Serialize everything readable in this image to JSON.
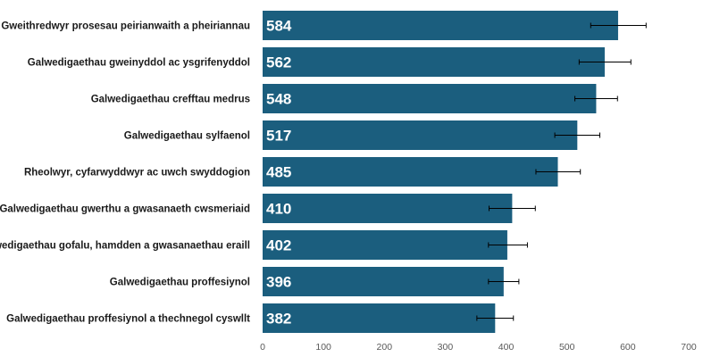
{
  "chart_data": {
    "type": "bar",
    "orientation": "horizontal",
    "categories": [
      "Gweithredwyr prosesau peirianwaith a pheiriannau",
      "Galwedigaethau gweinyddol ac ysgrifenyddol",
      "Galwedigaethau crefftau medrus",
      "Galwedigaethau sylfaenol",
      "Rheolwyr, cyfarwyddwyr ac uwch swyddogion",
      "Galwedigaethau gwerthu a gwasanaeth cwsmeriaid",
      "Galwedigaethau gofalu, hamdden a gwasanaethau eraill",
      "Galwedigaethau proffesiynol",
      "Galwedigaethau proffesiynol a thechnegol cyswllt"
    ],
    "values": [
      584,
      562,
      548,
      517,
      485,
      410,
      402,
      396,
      382
    ],
    "value_labels": [
      "584",
      "562",
      "548",
      "517",
      "485",
      "410",
      "402",
      "396",
      "382"
    ],
    "error_low": [
      539,
      520,
      513,
      480,
      449,
      372,
      371,
      371,
      352
    ],
    "error_high": [
      630,
      605,
      583,
      554,
      522,
      448,
      435,
      421,
      412
    ],
    "xlim": [
      0,
      700
    ],
    "x_ticks": [
      0,
      100,
      200,
      300,
      400,
      500,
      600,
      700
    ],
    "x_tick_labels": [
      "0",
      "100",
      "200",
      "300",
      "400",
      "500",
      "600",
      "700"
    ],
    "title": "",
    "xlabel": "",
    "ylabel": "",
    "grid": false,
    "bar_color": "#1b5e7e",
    "error_bar_color": "#000000"
  }
}
